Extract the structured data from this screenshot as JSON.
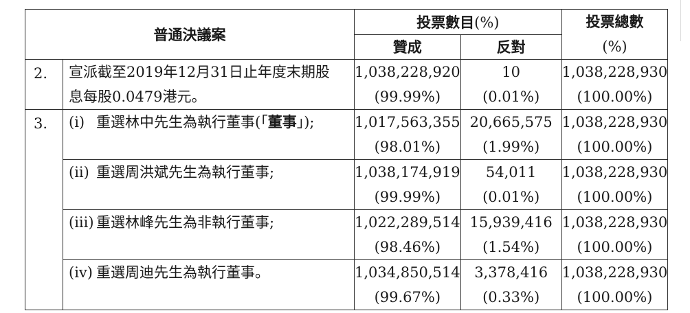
{
  "header": {
    "resolution_title": "普通決議案",
    "votes_title": "投票數目",
    "votes_pct": "(%)",
    "for_label": "贊成",
    "against_label": "反對",
    "total_title": "投票總數",
    "total_pct": "(%)"
  },
  "rows": [
    {
      "number": "2.",
      "line1": "宣派截至2019年12月31日止年度末期股",
      "line2": "息每股0.0479港元。",
      "for_votes": "1,038,228,920",
      "for_pct": "(99.99%)",
      "against_votes": "10",
      "against_pct": "(0.01%)",
      "total_votes": "1,038,228,930",
      "total_pct": "(100.00%)"
    }
  ],
  "group3": {
    "number": "3.",
    "items": [
      {
        "sub": "(i)",
        "pre": "重選林中先生為執行董事(「",
        "bold": "董事",
        "post": "」);",
        "for_votes": "1,017,563,355",
        "for_pct": "(98.01%)",
        "against_votes": "20,665,575",
        "against_pct": "(1.99%)",
        "total_votes": "1,038,228,930",
        "total_pct": "(100.00%)"
      },
      {
        "sub": "(ii)",
        "text": "重選周洪斌先生為執行董事;",
        "for_votes": "1,038,174,919",
        "for_pct": "(99.99%)",
        "against_votes": "54,011",
        "against_pct": "(0.01%)",
        "total_votes": "1,038,228,930",
        "total_pct": "(100.00%)"
      },
      {
        "sub": "(iii)",
        "text": "重選林峰先生為非執行董事;",
        "for_votes": "1,022,289,514",
        "for_pct": "(98.46%)",
        "against_votes": "15,939,416",
        "against_pct": "(1.54%)",
        "total_votes": "1,038,228,930",
        "total_pct": "(100.00%)"
      },
      {
        "sub": "(iv)",
        "text": "重選周迪先生為執行董事。",
        "for_votes": "1,034,850,514",
        "for_pct": "(99.67%)",
        "against_votes": "3,378,416",
        "against_pct": "(0.33%)",
        "total_votes": "1,038,228,930",
        "total_pct": "(100.00%)"
      }
    ]
  }
}
